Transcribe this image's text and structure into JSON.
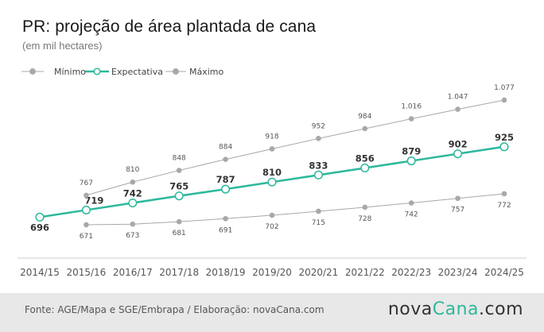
{
  "title": "PR: projeção de área plantada de cana",
  "subtitle": "(em mil hectares)",
  "source": "Fonte: AGE/Mapa e SGE/Embrapa / Elaboração: novaCana.com",
  "logo": {
    "prefix": "nova",
    "accent": "Cana",
    "suffix": ".com"
  },
  "colors": {
    "accent": "#2db89c",
    "gray": "#a8a8a8"
  },
  "chart_data": {
    "type": "line",
    "categories": [
      "2014/15",
      "2015/16",
      "2016/17",
      "2017/18",
      "2018/19",
      "2019/20",
      "2020/21",
      "2021/22",
      "2022/23",
      "2023/24",
      "2024/25"
    ],
    "series": [
      {
        "name": "Mínimo",
        "values": [
          null,
          671,
          673,
          681,
          691,
          702,
          715,
          728,
          742,
          757,
          772
        ],
        "labels": [
          "",
          "671",
          "673",
          "681",
          "691",
          "702",
          "715",
          "728",
          "742",
          "757",
          "772"
        ]
      },
      {
        "name": "Expectativa",
        "values": [
          696,
          719,
          742,
          765,
          787,
          810,
          833,
          856,
          879,
          902,
          925
        ],
        "labels": [
          "696",
          "719",
          "742",
          "765",
          "787",
          "810",
          "833",
          "856",
          "879",
          "902",
          "925"
        ]
      },
      {
        "name": "Máximo",
        "values": [
          null,
          767,
          810,
          848,
          884,
          918,
          952,
          984,
          1016,
          1047,
          1077
        ],
        "labels": [
          "",
          "767",
          "810",
          "848",
          "884",
          "918",
          "952",
          "984",
          "1.016",
          "1.047",
          "1.077"
        ]
      }
    ],
    "legend_position": "top-left",
    "grid": false
  }
}
